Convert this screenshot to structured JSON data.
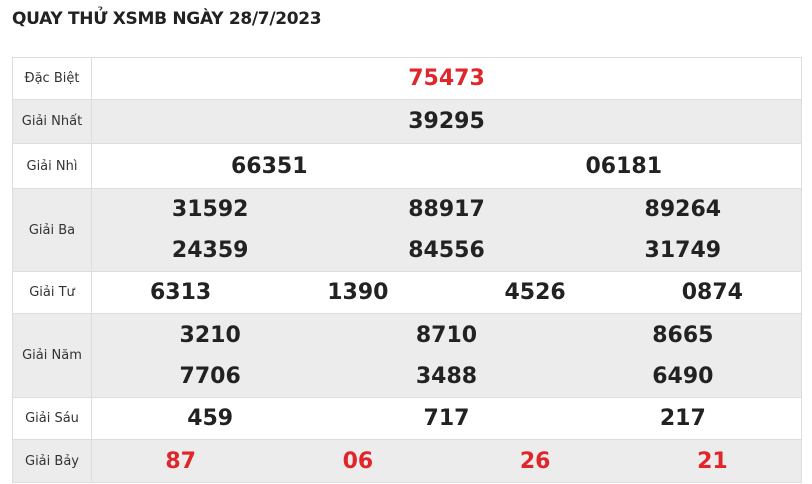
{
  "title": "QUAY THỬ XSMB NGÀY 28/7/2023",
  "accent_color": "#e0252b",
  "prizes": [
    {
      "label": "Đặc Biệt",
      "numbers": [
        "75473"
      ]
    },
    {
      "label": "Giải Nhất",
      "numbers": [
        "39295"
      ]
    },
    {
      "label": "Giải Nhì",
      "numbers": [
        "66351",
        "06181"
      ]
    },
    {
      "label": "Giải Ba",
      "numbers": [
        "31592",
        "88917",
        "89264",
        "24359",
        "84556",
        "31749"
      ]
    },
    {
      "label": "Giải Tư",
      "numbers": [
        "6313",
        "1390",
        "4526",
        "0874"
      ]
    },
    {
      "label": "Giải Năm",
      "numbers": [
        "3210",
        "8710",
        "8665",
        "7706",
        "3488",
        "6490"
      ]
    },
    {
      "label": "Giải Sáu",
      "numbers": [
        "459",
        "717",
        "217"
      ]
    },
    {
      "label": "Giải Bảy",
      "numbers": [
        "87",
        "06",
        "26",
        "21"
      ]
    }
  ]
}
